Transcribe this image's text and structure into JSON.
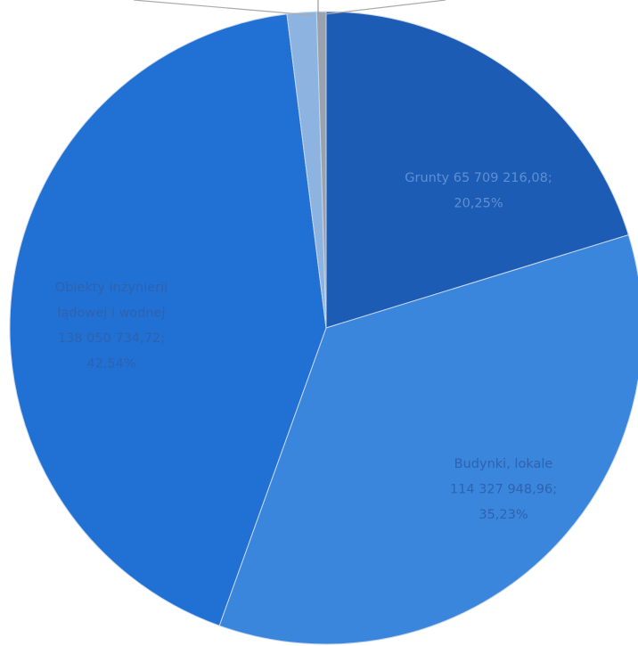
{
  "chart_data": {
    "type": "pie",
    "categories": [
      "Grunty",
      "Budynki, lokale",
      "Obiekty inżynierii lądowej i wodnej",
      null,
      null
    ],
    "values": [
      20.25,
      35.23,
      42.54,
      1.5,
      0.48
    ],
    "colors": [
      "#1d5cb4",
      "#3a86dd",
      "#2170d3",
      "#8db3e0",
      "#9aa3ad"
    ],
    "value_labels": [
      [
        "Grunty 65 709 216,08;",
        "20,25%"
      ],
      [
        "Budynki, lokale",
        "114 327 948,96;",
        "35,23%"
      ],
      [
        "Obiekty inżynierii",
        "lądowej i wodnej",
        "138 050 734,72;",
        "42,54%"
      ],
      null,
      null
    ]
  }
}
